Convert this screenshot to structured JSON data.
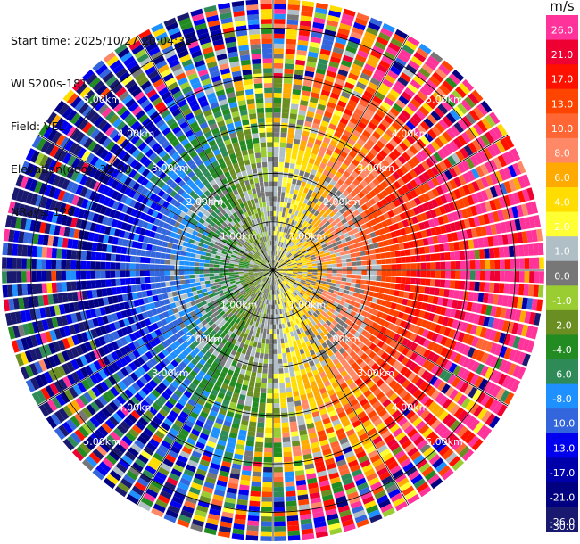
{
  "info": {
    "start_time": "Start time: 2025/10/27 20:04:32",
    "instrument": "WLS200s-181",
    "field": "Field: VEL",
    "elevation": "Elevation(deg): 35.00",
    "nrays": "NRays: 120"
  },
  "colorbar": {
    "unit": "m/s",
    "ticks": [
      "26.0",
      "21.0",
      "17.0",
      "13.0",
      "10.0",
      "8.0",
      "6.0",
      "4.0",
      "2.0",
      "1.0",
      "0.0",
      "-1.0",
      "-2.0",
      "-4.0",
      "-6.0",
      "-8.0",
      "-10.0",
      "-13.0",
      "-17.0",
      "-21.0",
      "-26.0",
      "-30.0"
    ],
    "colors": [
      "#ff3399",
      "#ee0033",
      "#ff1100",
      "#ff4400",
      "#ff6633",
      "#ff8866",
      "#ffaa00",
      "#ffdd00",
      "#ffff33",
      "#b0bec5",
      "#777777",
      "#9acd32",
      "#6b8e23",
      "#228b22",
      "#2e8b57",
      "#1e90ff",
      "#3366dd",
      "#0000ee",
      "#0000aa",
      "#000080",
      "#191970"
    ]
  },
  "chart_data": {
    "type": "ppi",
    "field": "VEL",
    "units": "m/s",
    "elevation_deg": 35.0,
    "n_rays": 120,
    "range_rings_km": [
      1,
      2,
      3,
      4,
      5
    ],
    "ring_labels": [
      "1.00km",
      "2.00km",
      "3.00km",
      "4.00km",
      "5.00km"
    ],
    "max_range_km": 5.6,
    "n_gates": 55,
    "color_scale_min": -30,
    "color_scale_max": 26,
    "spoke_angles_deg": [
      0,
      30,
      60,
      90,
      120,
      150,
      180,
      210,
      240,
      270,
      300,
      330
    ]
  }
}
